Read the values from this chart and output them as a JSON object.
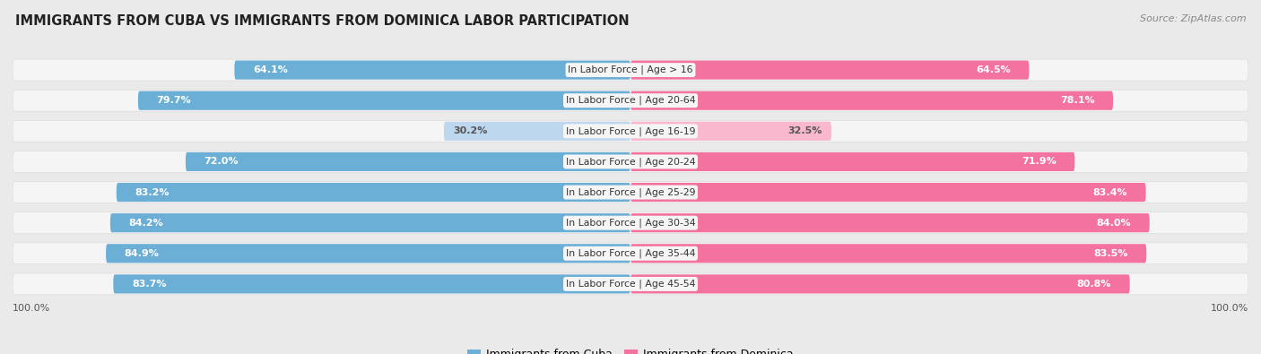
{
  "title": "IMMIGRANTS FROM CUBA VS IMMIGRANTS FROM DOMINICA LABOR PARTICIPATION",
  "source": "Source: ZipAtlas.com",
  "categories": [
    "In Labor Force | Age > 16",
    "In Labor Force | Age 20-64",
    "In Labor Force | Age 16-19",
    "In Labor Force | Age 20-24",
    "In Labor Force | Age 25-29",
    "In Labor Force | Age 30-34",
    "In Labor Force | Age 35-44",
    "In Labor Force | Age 45-54"
  ],
  "cuba_values": [
    64.1,
    79.7,
    30.2,
    72.0,
    83.2,
    84.2,
    84.9,
    83.7
  ],
  "dominica_values": [
    64.5,
    78.1,
    32.5,
    71.9,
    83.4,
    84.0,
    83.5,
    80.8
  ],
  "cuba_color": "#6BAED6",
  "cuba_color_light": "#BDD7EE",
  "dominica_color": "#F472A0",
  "dominica_color_light": "#F9B8CE",
  "label_color_white": "#ffffff",
  "label_color_dark": "#555555",
  "bg_color": "#EAEAEA",
  "row_bg_color": "#F5F5F5",
  "row_border_color": "#DDDDDD",
  "max_value": 100.0,
  "light_threshold": 50,
  "legend_cuba": "Immigrants from Cuba",
  "legend_dominica": "Immigrants from Dominica"
}
